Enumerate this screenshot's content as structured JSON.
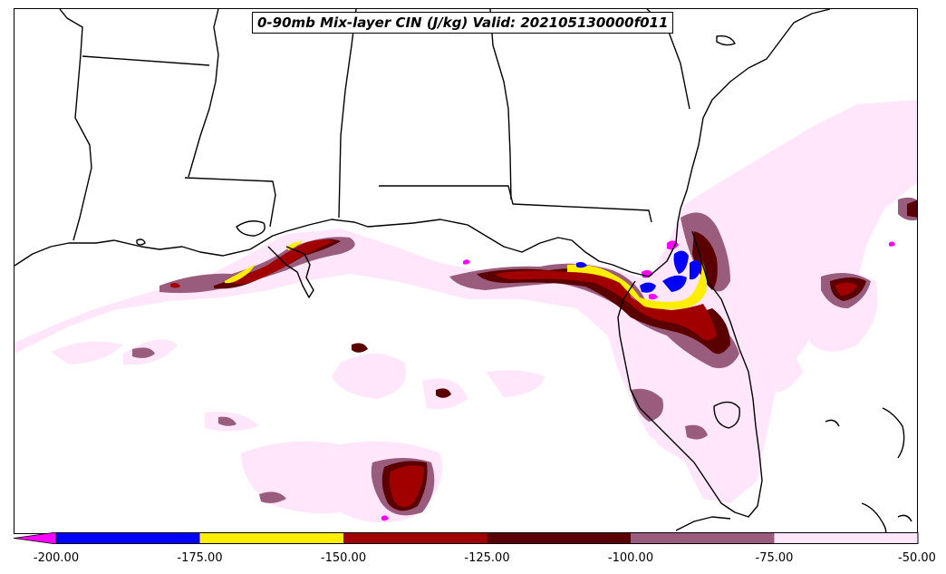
{
  "title": "0-90mb Mix-layer CIN (J/kg) Valid: 202105130000f011",
  "colorbar": {
    "extend": "min",
    "extend_color": "#ff00ff",
    "bins": [
      {
        "from": -200,
        "to": -175,
        "color": "#0000ff"
      },
      {
        "from": -175,
        "to": -150,
        "color": "#ffee00"
      },
      {
        "from": -150,
        "to": -125,
        "color": "#a00000"
      },
      {
        "from": -125,
        "to": -100,
        "color": "#5a0000"
      },
      {
        "from": -100,
        "to": -75,
        "color": "#9a5c7c"
      },
      {
        "from": -75,
        "to": -50,
        "color": "#ffe6fa"
      }
    ],
    "tick_labels": [
      "-200.00",
      "-175.00",
      "-150.00",
      "-125.00",
      "-100.00",
      "-75.00",
      "-50.00"
    ]
  },
  "colors": {
    "light_pink": "#ffe6fa",
    "mauve": "#9a5c7c",
    "dark_red": "#5a0000",
    "red": "#a00000",
    "yellow": "#ffee00",
    "blue": "#0000ff",
    "magenta": "#ff00ff",
    "border": "#000000"
  }
}
